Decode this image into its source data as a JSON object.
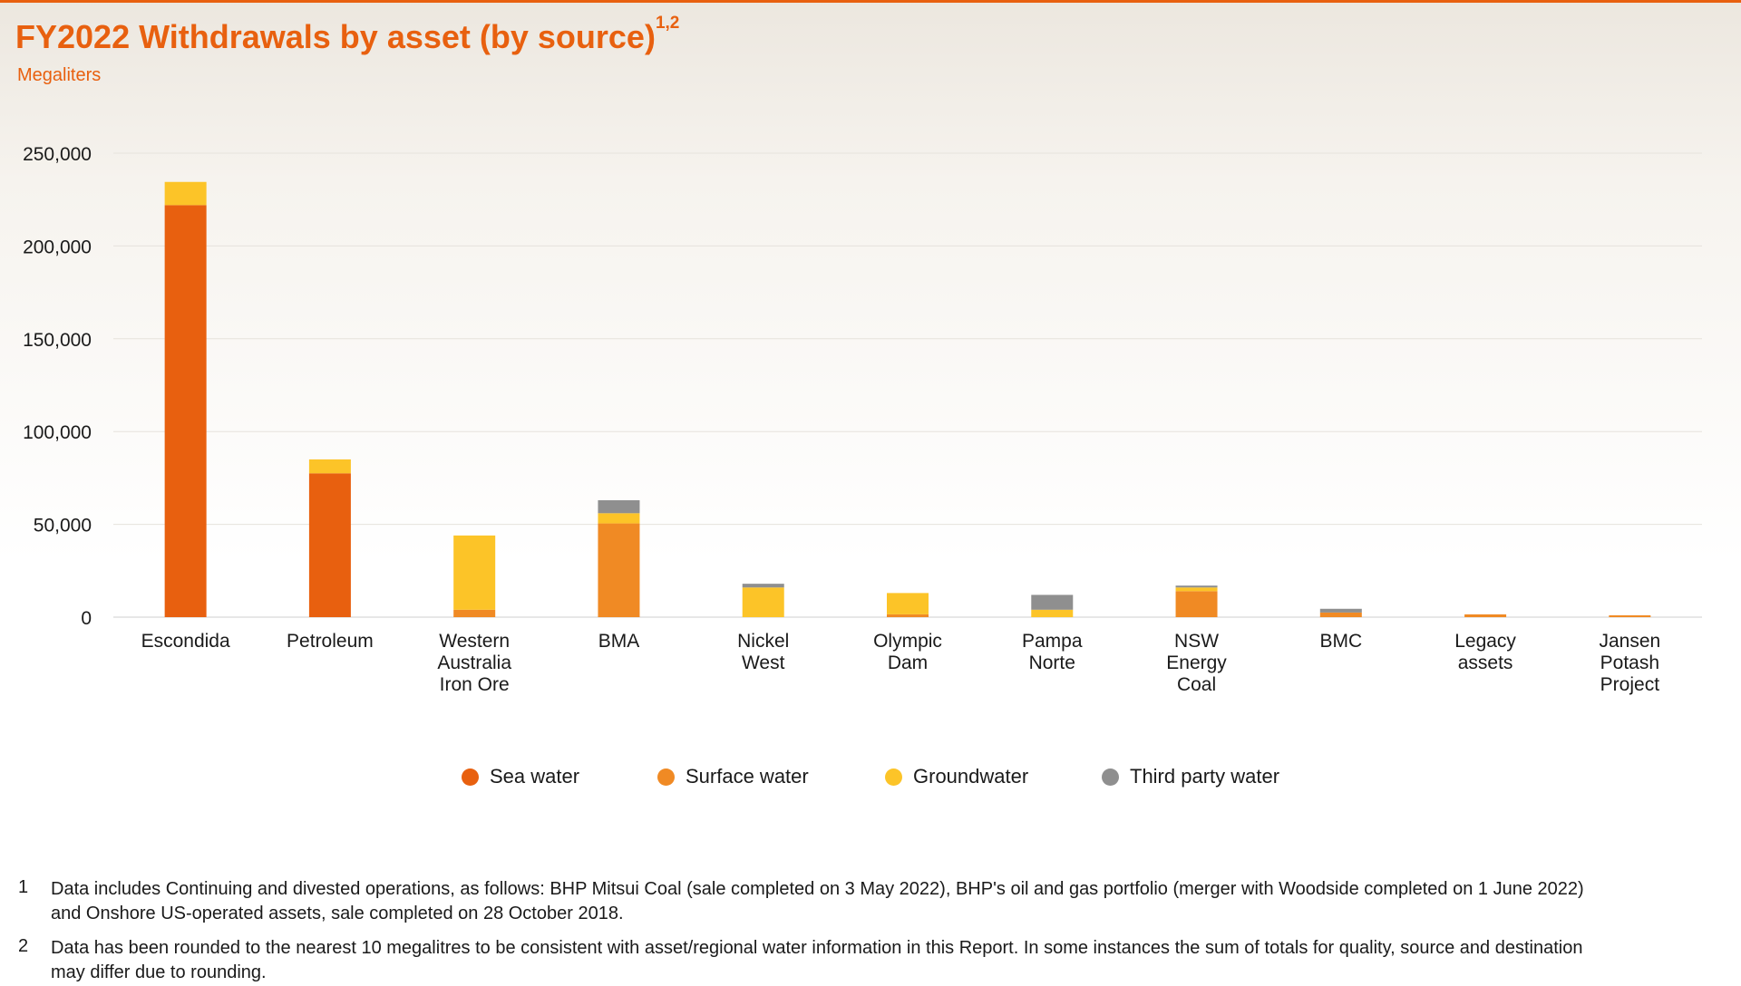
{
  "title": "FY2022 Withdrawals by asset (by source)",
  "title_superscript": "1,2",
  "subtitle": "Megaliters",
  "colors": {
    "accent": "#e8600f",
    "sea_water": "#e8600f",
    "surface_water": "#f08a24",
    "groundwater": "#fcc428",
    "third_party_water": "#8f8f8f"
  },
  "chart_data": {
    "type": "bar",
    "stacked": true,
    "ylim": [
      0,
      250000
    ],
    "y_ticks": [
      0,
      50000,
      100000,
      150000,
      200000,
      250000
    ],
    "y_tick_labels": [
      "0",
      "50,000",
      "100,000",
      "150,000",
      "200,000",
      "250,000"
    ],
    "grid": true,
    "legend_position": "bottom",
    "categories": [
      "Escondida",
      "Petroleum",
      "Western Australia Iron Ore",
      "BMA",
      "Nickel West",
      "Olympic Dam",
      "Pampa Norte",
      "NSW Energy Coal",
      "BMC",
      "Legacy assets",
      "Jansen Potash Project"
    ],
    "category_lines": [
      [
        "Escondida"
      ],
      [
        "Petroleum"
      ],
      [
        "Western",
        "Australia",
        "Iron Ore"
      ],
      [
        "BMA"
      ],
      [
        "Nickel",
        "West"
      ],
      [
        "Olympic",
        "Dam"
      ],
      [
        "Pampa",
        "Norte"
      ],
      [
        "NSW",
        "Energy",
        "Coal"
      ],
      [
        "BMC"
      ],
      [
        "Legacy",
        "assets"
      ],
      [
        "Jansen",
        "Potash",
        "Project"
      ]
    ],
    "series": [
      {
        "name": "Sea water",
        "color": "#e8600f",
        "values": [
          222000,
          77500,
          0,
          0,
          0,
          0,
          0,
          0,
          0,
          0,
          0
        ]
      },
      {
        "name": "Surface water",
        "color": "#f08a24",
        "values": [
          0,
          0,
          4000,
          50500,
          0,
          1500,
          0,
          14000,
          2500,
          1500,
          1000
        ]
      },
      {
        "name": "Groundwater",
        "color": "#fcc428",
        "values": [
          12500,
          7500,
          40000,
          5500,
          16000,
          11500,
          4000,
          2000,
          0,
          0,
          0
        ]
      },
      {
        "name": "Third party water",
        "color": "#8f8f8f",
        "values": [
          0,
          0,
          0,
          7000,
          2000,
          0,
          8000,
          1000,
          2000,
          0,
          0
        ]
      }
    ]
  },
  "footnotes": [
    {
      "number": "1",
      "text": "Data includes Continuing and divested operations, as follows: BHP Mitsui Coal (sale completed on 3 May 2022), BHP's oil and gas portfolio (merger with Woodside completed on 1 June 2022) and Onshore US-operated assets, sale completed on 28 October 2018."
    },
    {
      "number": "2",
      "text": "Data has been rounded to the nearest 10 megalitres to be consistent with asset/regional water information in this Report. In some instances the sum of totals for quality, source and destination may differ due to rounding."
    }
  ]
}
